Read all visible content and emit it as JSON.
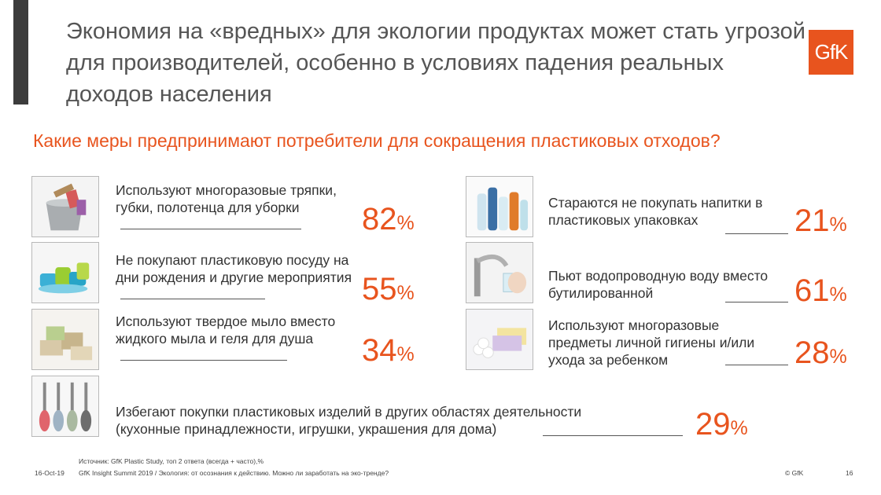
{
  "title": "Экономия на «вредных» для экологии продуктах может стать угрозой для производителей, особенно в условиях падения реальных доходов населения",
  "logo_text": "GfK",
  "question": "Какие меры предпринимают потребители для сокращения пластиковых отходов?",
  "percent_sign": "%",
  "items": [
    {
      "label": "Используют многоразовые тряпки, губки, полотенца для уборки",
      "value": "82",
      "image_icon": "bucket-rags-icon"
    },
    {
      "label": "Не покупают пластиковую посуду на дни рождения и другие мероприятия",
      "value": "55",
      "image_icon": "plastic-tableware-icon"
    },
    {
      "label": "Используют твердое мыло вместо жидкого мыла и геля для душа",
      "value": "34",
      "image_icon": "soap-bars-icon"
    },
    {
      "label": "Стараются не покупать напитки в пластиковых упаковках",
      "value": "21",
      "image_icon": "plastic-bottles-icon"
    },
    {
      "label": "Пьют водопроводную воду вместо бутилированной",
      "value": "61",
      "image_icon": "tap-water-icon"
    },
    {
      "label": "Используют многоразовые предметы личной гигиены и/или ухода за ребенком",
      "value": "28",
      "image_icon": "hygiene-items-icon"
    },
    {
      "label": "Избегают покупки пластиковых изделий в других областях деятельности (кухонные принадлежности, игрушки, украшения для дома)",
      "value": "29",
      "image_icon": "kitchen-utensils-icon"
    }
  ],
  "footer": {
    "source": "Источник: GfK Plastic Study, топ 2 ответа (всегда + часто),%",
    "date": "16-Oct-19",
    "event": "GfK Insight Summit 2019 / Экология: от осознания к действию. Можно ли заработать на эко-тренде?",
    "copyright": "© GfK",
    "page": "16"
  }
}
